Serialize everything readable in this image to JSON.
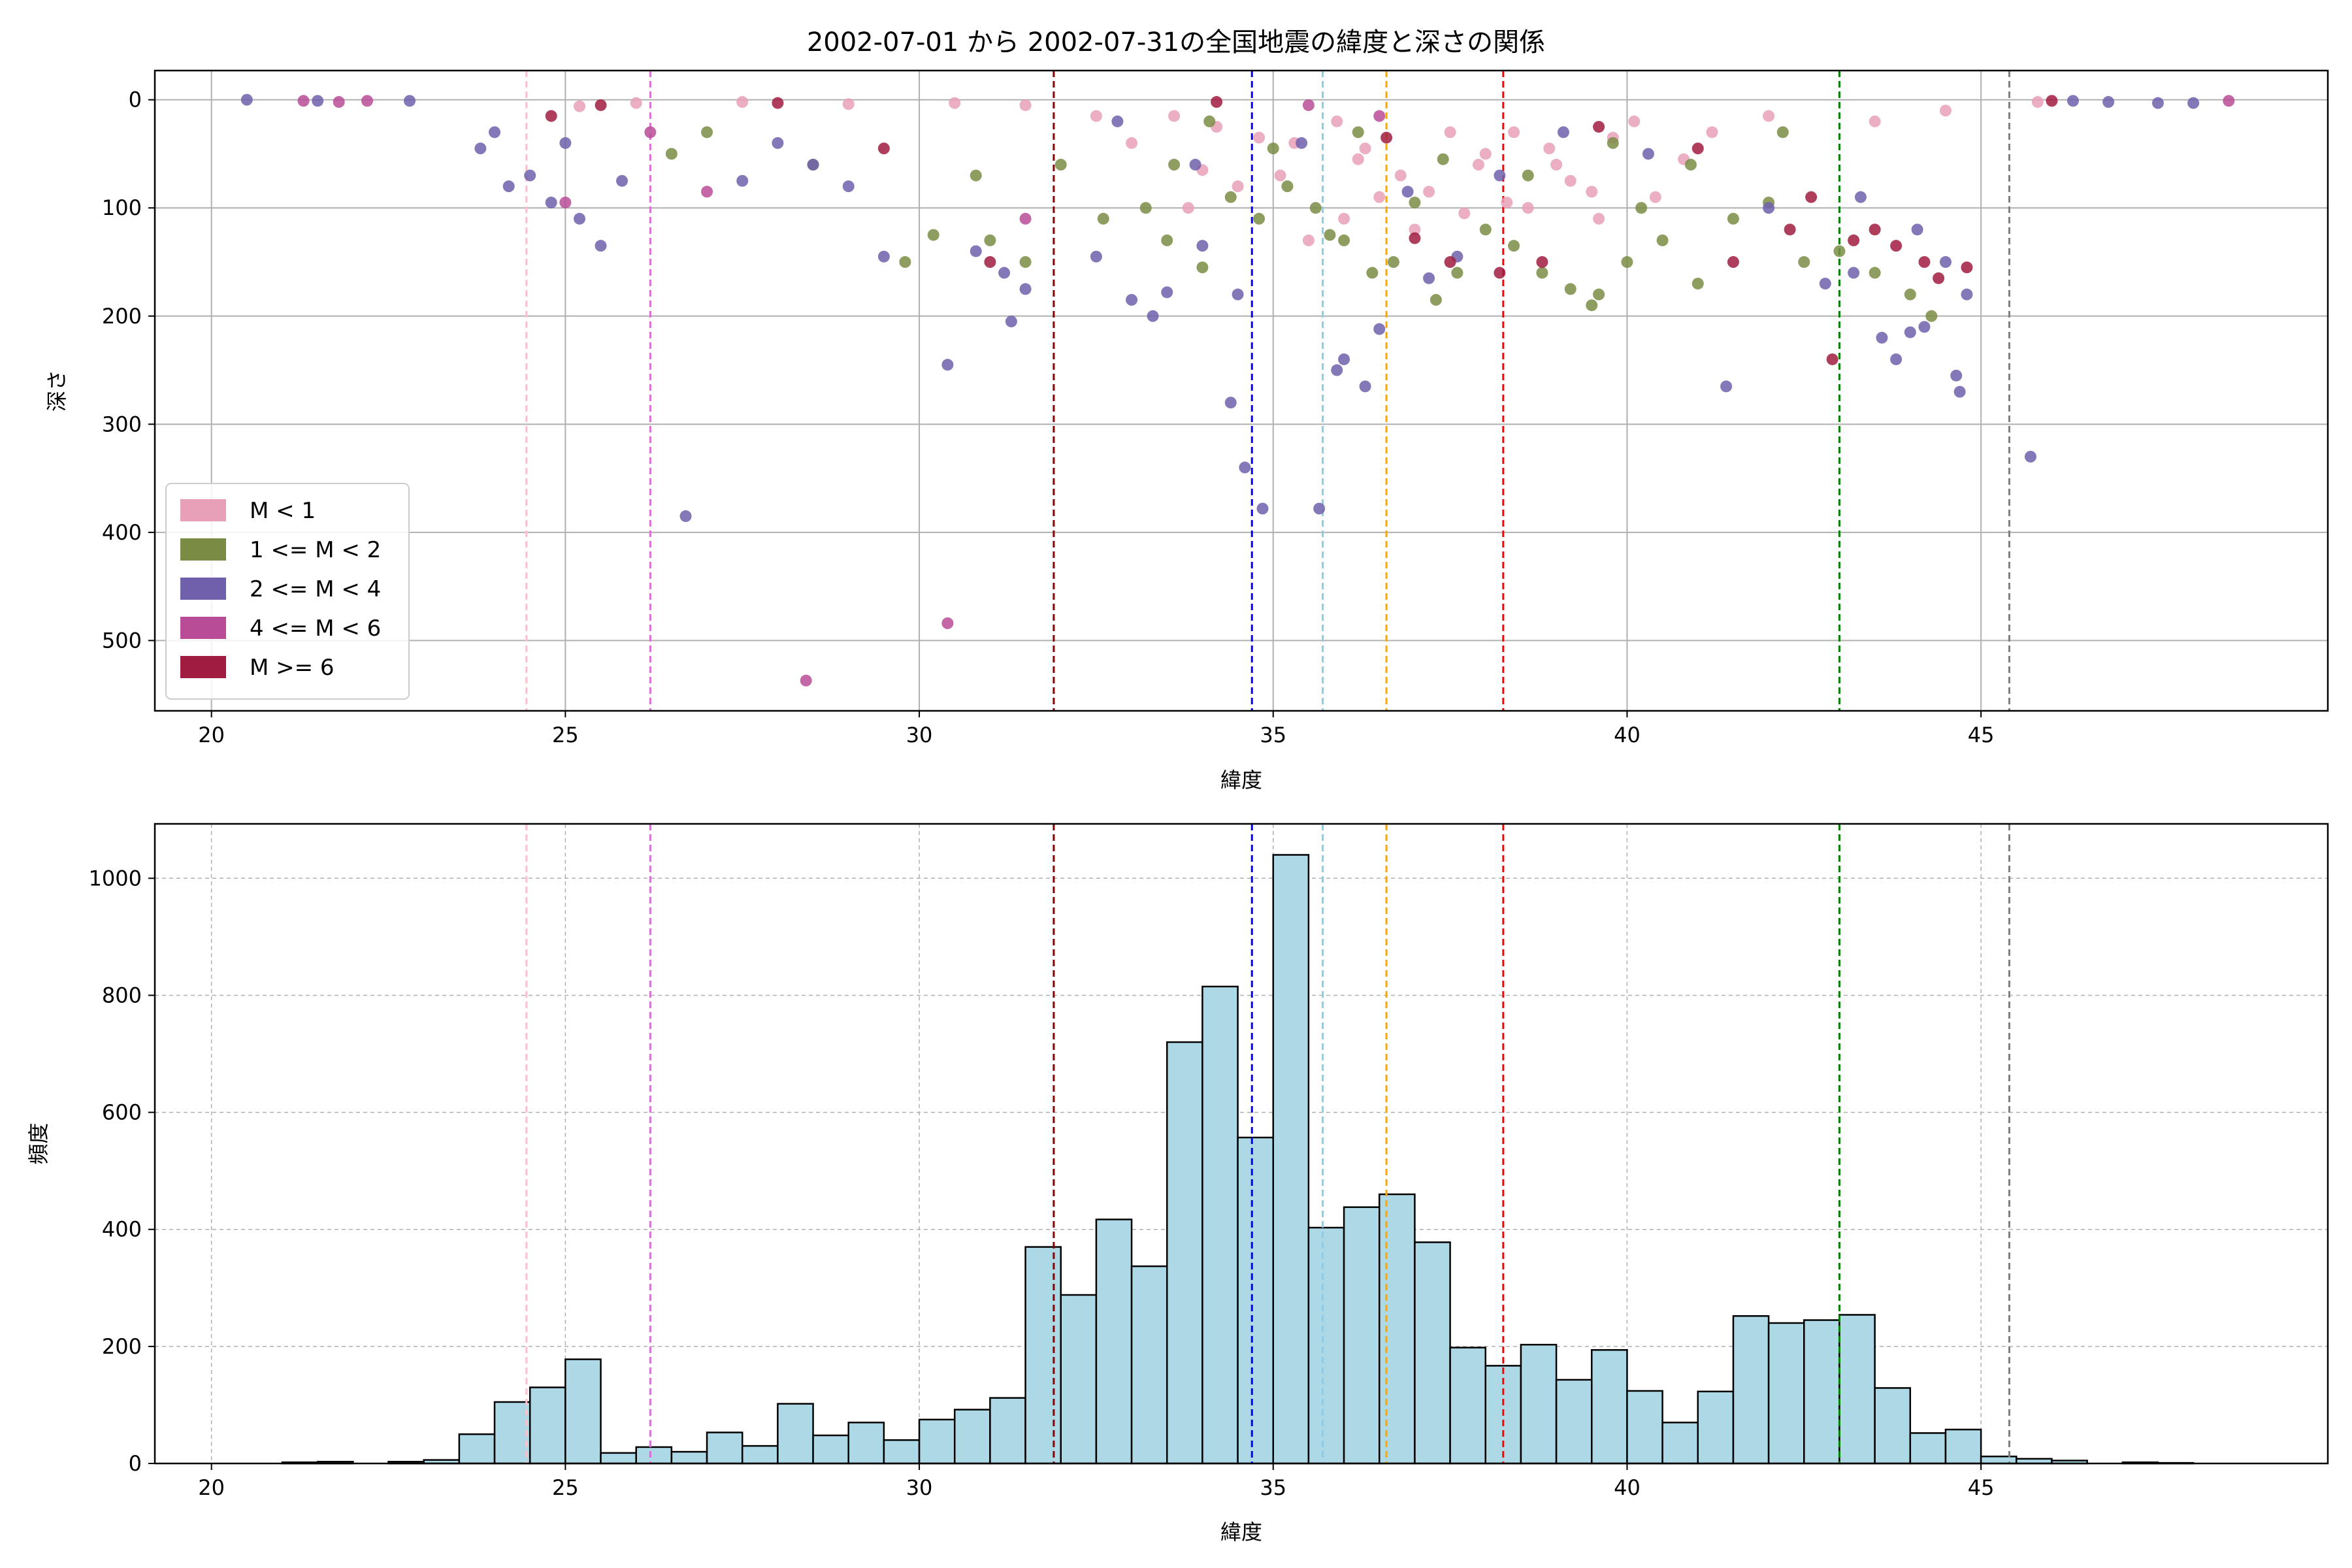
{
  "figure": {
    "title": "2002-07-01 から 2002-07-31の全国地震の緯度と深さの関係"
  },
  "chart_data": [
    {
      "type": "scatter",
      "title": "2002-07-01 から 2002-07-31の全国地震の緯度と深さの関係",
      "xlabel": "緯度",
      "ylabel": "深さ",
      "xlim": [
        19.2,
        49.9
      ],
      "ylim": [
        565,
        -27
      ],
      "y_inverted": true,
      "grid": true,
      "legend_position": "lower-left",
      "xticks": [
        20,
        25,
        30,
        35,
        40,
        45
      ],
      "yticks": [
        0,
        100,
        200,
        300,
        400,
        500
      ],
      "reference_lines": [
        {
          "x": 24.45,
          "color": "#ffc0cb"
        },
        {
          "x": 26.2,
          "color": "#da70d6"
        },
        {
          "x": 31.9,
          "color": "#8b0000"
        },
        {
          "x": 34.7,
          "color": "#0000ff"
        },
        {
          "x": 35.7,
          "color": "#87ceeb"
        },
        {
          "x": 36.6,
          "color": "#ffa500"
        },
        {
          "x": 38.25,
          "color": "#ff0000"
        },
        {
          "x": 43.0,
          "color": "#008000"
        },
        {
          "x": 45.4,
          "color": "#808080"
        }
      ],
      "series": [
        {
          "name": "M < 1",
          "color": "#e8a0b8",
          "points": [
            [
              33.6,
              15
            ],
            [
              34.2,
              25
            ],
            [
              34.8,
              35
            ],
            [
              35.3,
              40
            ],
            [
              35.9,
              20
            ],
            [
              36.2,
              55
            ],
            [
              36.8,
              70
            ],
            [
              37.2,
              85
            ],
            [
              37.5,
              30
            ],
            [
              37.9,
              60
            ],
            [
              38.3,
              95
            ],
            [
              38.6,
              100
            ],
            [
              38.9,
              45
            ],
            [
              39.2,
              75
            ],
            [
              39.5,
              85
            ],
            [
              39.8,
              35
            ],
            [
              40.1,
              20
            ],
            [
              40.4,
              90
            ],
            [
              40.8,
              55
            ],
            [
              41.2,
              30
            ],
            [
              36.0,
              110
            ],
            [
              35.5,
              130
            ],
            [
              33.8,
              100
            ],
            [
              34.5,
              80
            ],
            [
              37.0,
              120
            ],
            [
              38.0,
              50
            ],
            [
              36.5,
              90
            ],
            [
              35.1,
              70
            ],
            [
              39.0,
              60
            ],
            [
              33.0,
              40
            ],
            [
              32.5,
              15
            ],
            [
              31.5,
              5
            ],
            [
              30.5,
              3
            ],
            [
              29.0,
              4
            ],
            [
              27.5,
              2
            ],
            [
              26.0,
              3
            ],
            [
              25.2,
              6
            ],
            [
              42.0,
              15
            ],
            [
              43.5,
              20
            ],
            [
              44.5,
              10
            ],
            [
              45.8,
              2
            ],
            [
              34.0,
              65
            ],
            [
              36.3,
              45
            ],
            [
              37.7,
              105
            ],
            [
              38.4,
              30
            ],
            [
              39.6,
              110
            ]
          ]
        },
        {
          "name": "1 <= M < 2",
          "color": "#7a8c44",
          "points": [
            [
              31.0,
              130
            ],
            [
              31.5,
              150
            ],
            [
              30.2,
              125
            ],
            [
              32.0,
              60
            ],
            [
              32.6,
              110
            ],
            [
              33.2,
              100
            ],
            [
              33.5,
              130
            ],
            [
              34.0,
              155
            ],
            [
              34.4,
              90
            ],
            [
              34.8,
              110
            ],
            [
              35.2,
              80
            ],
            [
              35.6,
              100
            ],
            [
              36.0,
              130
            ],
            [
              36.4,
              160
            ],
            [
              36.7,
              150
            ],
            [
              37.0,
              95
            ],
            [
              37.3,
              185
            ],
            [
              37.6,
              160
            ],
            [
              38.0,
              120
            ],
            [
              38.4,
              135
            ],
            [
              38.8,
              160
            ],
            [
              39.2,
              175
            ],
            [
              39.6,
              180
            ],
            [
              40.0,
              150
            ],
            [
              40.5,
              130
            ],
            [
              41.0,
              170
            ],
            [
              41.5,
              110
            ],
            [
              42.0,
              95
            ],
            [
              42.5,
              150
            ],
            [
              43.0,
              140
            ],
            [
              43.5,
              160
            ],
            [
              44.0,
              180
            ],
            [
              44.3,
              200
            ],
            [
              34.1,
              20
            ],
            [
              35.0,
              45
            ],
            [
              36.2,
              30
            ],
            [
              37.4,
              55
            ],
            [
              38.6,
              70
            ],
            [
              39.8,
              40
            ],
            [
              40.9,
              60
            ],
            [
              42.2,
              30
            ],
            [
              30.8,
              70
            ],
            [
              29.8,
              150
            ],
            [
              28.5,
              60
            ],
            [
              27.0,
              30
            ],
            [
              26.5,
              50
            ],
            [
              33.6,
              60
            ],
            [
              35.8,
              125
            ],
            [
              39.5,
              190
            ],
            [
              40.2,
              100
            ]
          ]
        },
        {
          "name": "2 <= M < 4",
          "color": "#7060ac",
          "points": [
            [
              20.5,
              0
            ],
            [
              21.5,
              1
            ],
            [
              22.8,
              1
            ],
            [
              23.8,
              45
            ],
            [
              24.0,
              30
            ],
            [
              24.2,
              80
            ],
            [
              24.5,
              70
            ],
            [
              24.8,
              95
            ],
            [
              25.0,
              40
            ],
            [
              25.2,
              110
            ],
            [
              25.5,
              135
            ],
            [
              25.8,
              75
            ],
            [
              27.5,
              75
            ],
            [
              28.0,
              40
            ],
            [
              28.5,
              60
            ],
            [
              29.0,
              80
            ],
            [
              29.5,
              145
            ],
            [
              30.4,
              245
            ],
            [
              30.8,
              140
            ],
            [
              31.2,
              160
            ],
            [
              31.5,
              175
            ],
            [
              31.3,
              205
            ],
            [
              32.5,
              145
            ],
            [
              33.0,
              185
            ],
            [
              33.3,
              200
            ],
            [
              33.5,
              178
            ],
            [
              34.0,
              135
            ],
            [
              34.5,
              180
            ],
            [
              34.4,
              280
            ],
            [
              34.6,
              340
            ],
            [
              34.85,
              378
            ],
            [
              35.65,
              378
            ],
            [
              35.9,
              250
            ],
            [
              36.0,
              240
            ],
            [
              36.3,
              265
            ],
            [
              36.5,
              212
            ],
            [
              37.2,
              165
            ],
            [
              37.6,
              145
            ],
            [
              41.4,
              265
            ],
            [
              42.8,
              170
            ],
            [
              43.2,
              160
            ],
            [
              43.6,
              220
            ],
            [
              43.8,
              240
            ],
            [
              44.0,
              215
            ],
            [
              44.2,
              210
            ],
            [
              44.5,
              150
            ],
            [
              44.8,
              180
            ],
            [
              44.65,
              255
            ],
            [
              44.7,
              270
            ],
            [
              45.7,
              330
            ],
            [
              26.7,
              385
            ],
            [
              46.3,
              1
            ],
            [
              46.8,
              2
            ],
            [
              47.5,
              3
            ],
            [
              48.0,
              3
            ],
            [
              42.0,
              100
            ],
            [
              43.3,
              90
            ],
            [
              44.1,
              120
            ],
            [
              40.3,
              50
            ],
            [
              39.1,
              30
            ],
            [
              38.2,
              70
            ],
            [
              36.9,
              85
            ],
            [
              35.4,
              40
            ],
            [
              33.9,
              60
            ],
            [
              32.8,
              20
            ]
          ]
        },
        {
          "name": "4 <= M < 6",
          "color": "#b84c96",
          "points": [
            [
              21.3,
              1
            ],
            [
              21.8,
              2
            ],
            [
              22.2,
              1
            ],
            [
              25.0,
              95
            ],
            [
              26.2,
              30
            ],
            [
              27.0,
              85
            ],
            [
              28.4,
              537
            ],
            [
              30.4,
              484
            ],
            [
              31.5,
              110
            ],
            [
              48.5,
              1
            ],
            [
              35.5,
              5
            ],
            [
              36.5,
              15
            ]
          ]
        },
        {
          "name": "M >= 6",
          "color": "#a01c40",
          "points": [
            [
              24.8,
              15
            ],
            [
              25.5,
              5
            ],
            [
              28.0,
              3
            ],
            [
              29.5,
              45
            ],
            [
              31.0,
              150
            ],
            [
              34.2,
              2
            ],
            [
              37.0,
              128
            ],
            [
              37.5,
              150
            ],
            [
              38.2,
              160
            ],
            [
              38.8,
              150
            ],
            [
              41.5,
              150
            ],
            [
              42.3,
              120
            ],
            [
              42.6,
              90
            ],
            [
              42.9,
              240
            ],
            [
              43.2,
              130
            ],
            [
              43.5,
              120
            ],
            [
              43.8,
              135
            ],
            [
              44.2,
              150
            ],
            [
              44.4,
              165
            ],
            [
              44.8,
              155
            ],
            [
              41.0,
              45
            ],
            [
              39.6,
              25
            ],
            [
              36.6,
              35
            ],
            [
              46.0,
              1
            ]
          ]
        }
      ]
    },
    {
      "type": "bar",
      "subtype": "histogram",
      "xlabel": "緯度",
      "ylabel": "頻度",
      "xlim": [
        19.2,
        49.9
      ],
      "ylim": [
        0,
        1093
      ],
      "grid": true,
      "xticks": [
        20,
        25,
        30,
        35,
        40,
        45
      ],
      "yticks": [
        0,
        200,
        400,
        600,
        800,
        1000
      ],
      "bar_color": "#add8e6",
      "edge_color": "#000000",
      "bin_start": 20.0,
      "bin_width": 0.5,
      "values": [
        0,
        0,
        2,
        3,
        0,
        3,
        6,
        50,
        105,
        130,
        178,
        18,
        28,
        20,
        53,
        30,
        102,
        48,
        70,
        40,
        75,
        92,
        112,
        370,
        288,
        417,
        337,
        720,
        815,
        557,
        1040,
        403,
        438,
        460,
        378,
        198,
        167,
        203,
        143,
        194,
        124,
        70,
        123,
        252,
        240,
        245,
        254,
        129,
        52,
        58,
        12,
        8,
        5,
        0,
        2,
        1
      ],
      "reference_lines": [
        {
          "x": 24.45,
          "color": "#ffc0cb"
        },
        {
          "x": 26.2,
          "color": "#da70d6"
        },
        {
          "x": 31.9,
          "color": "#8b0000"
        },
        {
          "x": 34.7,
          "color": "#0000ff"
        },
        {
          "x": 35.7,
          "color": "#87ceeb"
        },
        {
          "x": 36.6,
          "color": "#ffa500"
        },
        {
          "x": 38.25,
          "color": "#ff0000"
        },
        {
          "x": 43.0,
          "color": "#008000"
        },
        {
          "x": 45.4,
          "color": "#808080"
        }
      ]
    }
  ]
}
